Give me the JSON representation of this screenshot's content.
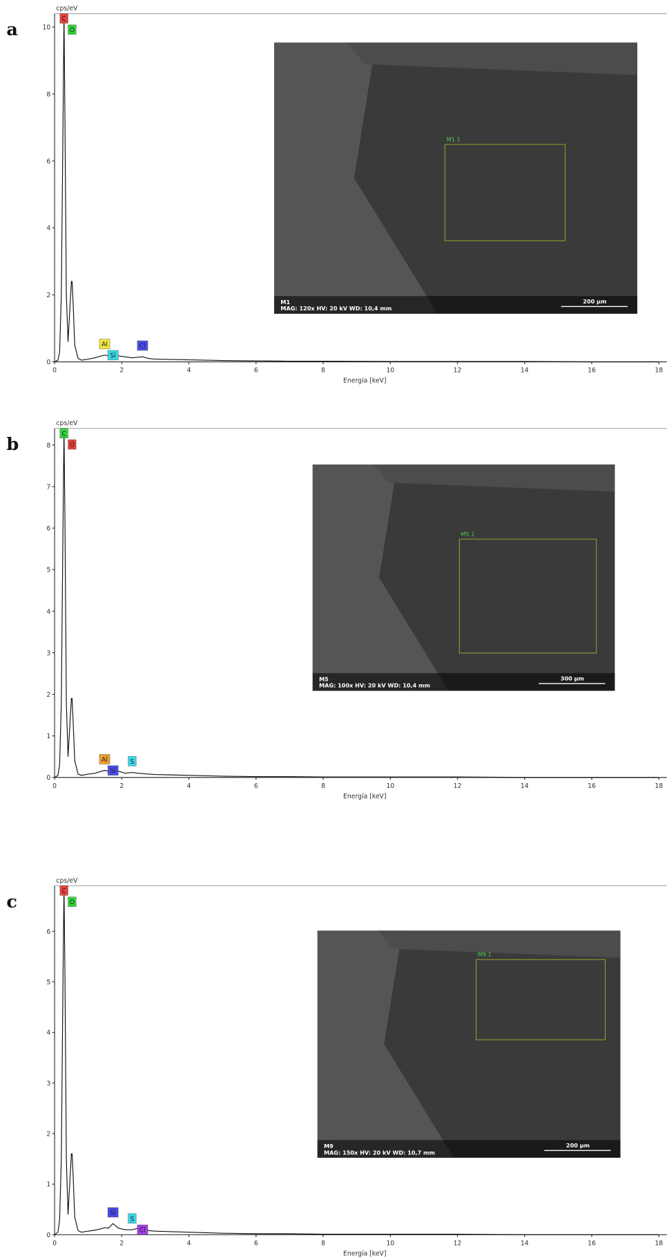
{
  "chart_data": [
    {
      "type": "line",
      "panel": "a",
      "y_label": "cps/eV",
      "x_label": "Energía [keV]",
      "color": "#111111",
      "xlim": [
        0,
        18
      ],
      "xticks": [
        0,
        2,
        4,
        6,
        8,
        10,
        12,
        14,
        16,
        18
      ],
      "ylim": [
        0,
        10.4
      ],
      "yticks": [
        0,
        2,
        4,
        6,
        8,
        10
      ],
      "x": [
        0,
        0.1,
        0.15,
        0.2,
        0.25,
        0.28,
        0.31,
        0.35,
        0.4,
        0.45,
        0.5,
        0.52,
        0.55,
        0.6,
        0.7,
        0.8,
        1,
        1.2,
        1.4,
        1.5,
        1.6,
        1.74,
        1.9,
        2.1,
        2.3,
        2.62,
        2.8,
        3,
        3.5,
        4,
        5,
        6,
        7,
        8,
        10,
        12,
        14,
        16,
        18
      ],
      "values": [
        0,
        0.05,
        0.3,
        2,
        7,
        10.4,
        7,
        2,
        0.6,
        1.5,
        2.4,
        2.4,
        1.8,
        0.5,
        0.1,
        0.05,
        0.08,
        0.12,
        0.18,
        0.2,
        0.18,
        0.25,
        0.18,
        0.15,
        0.12,
        0.15,
        0.1,
        0.08,
        0.07,
        0.06,
        0.04,
        0.03,
        0.02,
        0.02,
        0.01,
        0.01,
        0.01,
        0,
        0
      ],
      "peaks": [
        {
          "label": "C",
          "x": 0.28,
          "color": "#e8413a"
        },
        {
          "label": "O",
          "x": 0.52,
          "color": "#35d43a"
        },
        {
          "label": "Al",
          "x": 1.49,
          "color": "#f2e83a"
        },
        {
          "label": "Si",
          "x": 1.74,
          "color": "#3ad8e8"
        },
        {
          "label": "Cl",
          "x": 2.62,
          "color": "#4a4ae8"
        }
      ],
      "inset": {
        "sample": "M1",
        "info": "MAG: 120x   HV: 20 kV   WD: 10,4 mm",
        "scale_bar": "200 µm",
        "roi": "M1 1"
      }
    },
    {
      "type": "line",
      "panel": "b",
      "y_label": "cps/eV",
      "x_label": "Energía [keV]",
      "color": "#111111",
      "xlim": [
        0,
        18
      ],
      "xticks": [
        0,
        2,
        4,
        6,
        8,
        10,
        12,
        14,
        16,
        18
      ],
      "ylim": [
        0,
        8.4
      ],
      "yticks": [
        0,
        1,
        2,
        3,
        4,
        5,
        6,
        7,
        8
      ],
      "x": [
        0,
        0.1,
        0.15,
        0.2,
        0.25,
        0.28,
        0.31,
        0.35,
        0.4,
        0.45,
        0.5,
        0.52,
        0.55,
        0.6,
        0.7,
        0.8,
        1,
        1.2,
        1.4,
        1.5,
        1.6,
        1.74,
        1.9,
        2.1,
        2.31,
        2.5,
        2.8,
        3,
        3.5,
        4,
        5,
        6,
        7,
        8,
        10,
        12,
        14,
        16,
        18
      ],
      "values": [
        0,
        0.05,
        0.3,
        1.8,
        6,
        8.4,
        6,
        1.8,
        0.5,
        1.2,
        1.9,
        1.9,
        1.4,
        0.4,
        0.08,
        0.05,
        0.08,
        0.1,
        0.15,
        0.17,
        0.15,
        0.25,
        0.15,
        0.1,
        0.12,
        0.1,
        0.08,
        0.07,
        0.06,
        0.05,
        0.03,
        0.02,
        0.02,
        0.01,
        0.01,
        0.01,
        0,
        0,
        0
      ],
      "peaks": [
        {
          "label": "C",
          "x": 0.28,
          "color": "#35d43a"
        },
        {
          "label": "O",
          "x": 0.52,
          "color": "#e8413a"
        },
        {
          "label": "Al",
          "x": 1.49,
          "color": "#f0a030"
        },
        {
          "label": "Si",
          "x": 1.74,
          "color": "#4a4ae8"
        },
        {
          "label": "S",
          "x": 2.31,
          "color": "#3ad8e8"
        }
      ],
      "inset": {
        "sample": "M5",
        "info": "MAG: 100x   HV: 20 kV   WD: 10,4 mm",
        "scale_bar": "300 µm",
        "roi": "M5 1"
      }
    },
    {
      "type": "line",
      "panel": "c",
      "y_label": "cps/eV",
      "x_label": "Energía [keV]",
      "color": "#111111",
      "xlim": [
        0,
        18
      ],
      "xticks": [
        0,
        2,
        4,
        6,
        8,
        10,
        12,
        14,
        16,
        18
      ],
      "ylim": [
        0,
        6.9
      ],
      "yticks": [
        0,
        1,
        2,
        3,
        4,
        5,
        6
      ],
      "x": [
        0,
        0.1,
        0.15,
        0.2,
        0.25,
        0.28,
        0.31,
        0.35,
        0.4,
        0.45,
        0.5,
        0.52,
        0.55,
        0.6,
        0.7,
        0.8,
        1,
        1.2,
        1.4,
        1.5,
        1.6,
        1.74,
        1.9,
        2.1,
        2.31,
        2.62,
        2.8,
        3,
        3.5,
        4,
        5,
        6,
        7,
        8,
        10,
        12,
        14,
        16,
        18
      ],
      "values": [
        0,
        0.05,
        0.3,
        1.5,
        5,
        6.9,
        5,
        1.5,
        0.4,
        1,
        1.6,
        1.6,
        1.2,
        0.35,
        0.08,
        0.05,
        0.07,
        0.09,
        0.12,
        0.14,
        0.13,
        0.22,
        0.13,
        0.1,
        0.1,
        0.15,
        0.08,
        0.07,
        0.06,
        0.05,
        0.03,
        0.02,
        0.02,
        0.01,
        0.01,
        0.01,
        0,
        0,
        0
      ],
      "peaks": [
        {
          "label": "C",
          "x": 0.28,
          "color": "#e8413a"
        },
        {
          "label": "O",
          "x": 0.52,
          "color": "#35d43a"
        },
        {
          "label": "Si",
          "x": 1.74,
          "color": "#4a4ae8"
        },
        {
          "label": "S",
          "x": 2.31,
          "color": "#3ad8e8"
        },
        {
          "label": "Cl",
          "x": 2.62,
          "color": "#a040e8"
        }
      ],
      "inset": {
        "sample": "M9",
        "info": "MAG: 150x   HV: 20 kV   WD: 10,7 mm",
        "scale_bar": "200 µm",
        "roi": "M9 1"
      }
    }
  ]
}
